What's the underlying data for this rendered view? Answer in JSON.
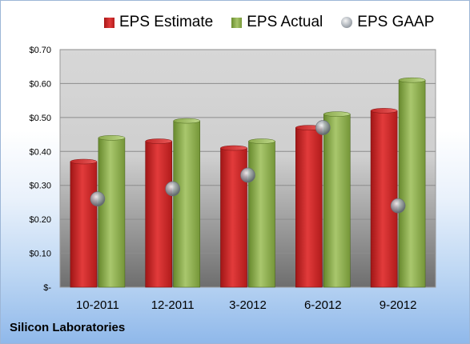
{
  "chart_data": {
    "type": "bar",
    "categories": [
      "10-2011",
      "12-2011",
      "3-2012",
      "6-2012",
      "9-2012"
    ],
    "series": [
      {
        "name": "EPS Estimate",
        "kind": "bar",
        "color": "#c62424",
        "values": [
          0.37,
          0.43,
          0.41,
          0.47,
          0.52
        ]
      },
      {
        "name": "EPS Actual",
        "kind": "bar",
        "color": "#8fb04a",
        "values": [
          0.44,
          0.49,
          0.43,
          0.51,
          0.61
        ]
      },
      {
        "name": "EPS GAAP",
        "kind": "point",
        "color": "#9aa1a8",
        "values": [
          0.26,
          0.29,
          0.33,
          0.47,
          0.24
        ]
      }
    ],
    "ylim": [
      0,
      0.7
    ],
    "yticks": [
      0,
      0.1,
      0.2,
      0.3,
      0.4,
      0.5,
      0.6,
      0.7
    ],
    "ytick_labels": [
      "$-",
      "$0.10",
      "$0.20",
      "$0.30",
      "$0.40",
      "$0.50",
      "$0.60",
      "$0.70"
    ],
    "grid": true,
    "legend_position": "top"
  },
  "footer": {
    "company": "Silicon Laboratories"
  }
}
